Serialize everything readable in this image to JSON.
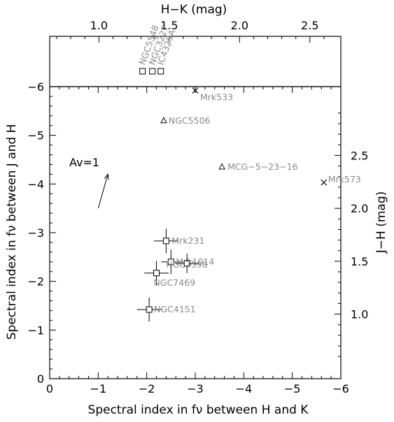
{
  "chart_data": {
    "type": "scatter",
    "xlabel": "Spectral index in fν between H and K",
    "ylabel": "Spectral index in fν between J and H",
    "top_xlabel": "H−K (mag)",
    "right_ylabel": "J−H (mag)",
    "xlim": [
      0,
      -6
    ],
    "ylim": [
      0,
      -6
    ],
    "top_xlim": [
      0.65,
      2.72
    ],
    "right_ylim": [
      0.39,
      3.15
    ],
    "x_ticks": [
      "0",
      "−1",
      "−2",
      "−3",
      "−4",
      "−5",
      "−6"
    ],
    "y_ticks": [
      "0",
      "−1",
      "−2",
      "−3",
      "−4",
      "−5",
      "−6"
    ],
    "top_ticks": [
      "1.0",
      "1.5",
      "2.0",
      "2.5"
    ],
    "right_ticks": [
      "1.0",
      "1.5",
      "2.0",
      "2.5"
    ],
    "reddening_label": "Av=1",
    "reddening_vector": {
      "x0": -1.0,
      "y0": -3.5,
      "x1": -1.2,
      "y1": -4.2
    },
    "points": [
      {
        "name": "Mrk533",
        "x": -3.0,
        "y": -5.92,
        "marker": "cross"
      },
      {
        "name": "NGC5506",
        "x": -2.35,
        "y": -5.3,
        "marker": "triangle"
      },
      {
        "name": "MCG−5−23−16",
        "x": -3.55,
        "y": -4.35,
        "marker": "triangle"
      },
      {
        "name": "Mrk573",
        "x": -5.65,
        "y": -4.03,
        "marker": "cross"
      },
      {
        "name": "Mrk231",
        "x": -2.4,
        "y": -2.83,
        "marker": "square",
        "xerr": 0.25,
        "yerr": 0.25
      },
      {
        "name": "Mrk1014",
        "x": -2.5,
        "y": -2.4,
        "marker": "square",
        "xerr": 0.2,
        "yerr": 0.25
      },
      {
        "name": "NGC7598",
        "x": -2.83,
        "y": -2.37,
        "marker": "square",
        "xerr": 0.25,
        "yerr": 0.2
      },
      {
        "name": "NGC7469",
        "x": -2.2,
        "y": -2.17,
        "marker": "square",
        "xerr": 0.25,
        "yerr": 0.25
      },
      {
        "name": "NGC4151",
        "x": -2.05,
        "y": -1.42,
        "marker": "square",
        "xerr": 0.25,
        "yerr": 0.25
      }
    ],
    "top_panel_points": [
      {
        "name": "NGC5548",
        "hk": 1.31,
        "marker": "square"
      },
      {
        "name": "NGC3227",
        "hk": 1.38,
        "marker": "square"
      },
      {
        "name": "IC4329A",
        "hk": 1.44,
        "marker": "square"
      }
    ]
  }
}
